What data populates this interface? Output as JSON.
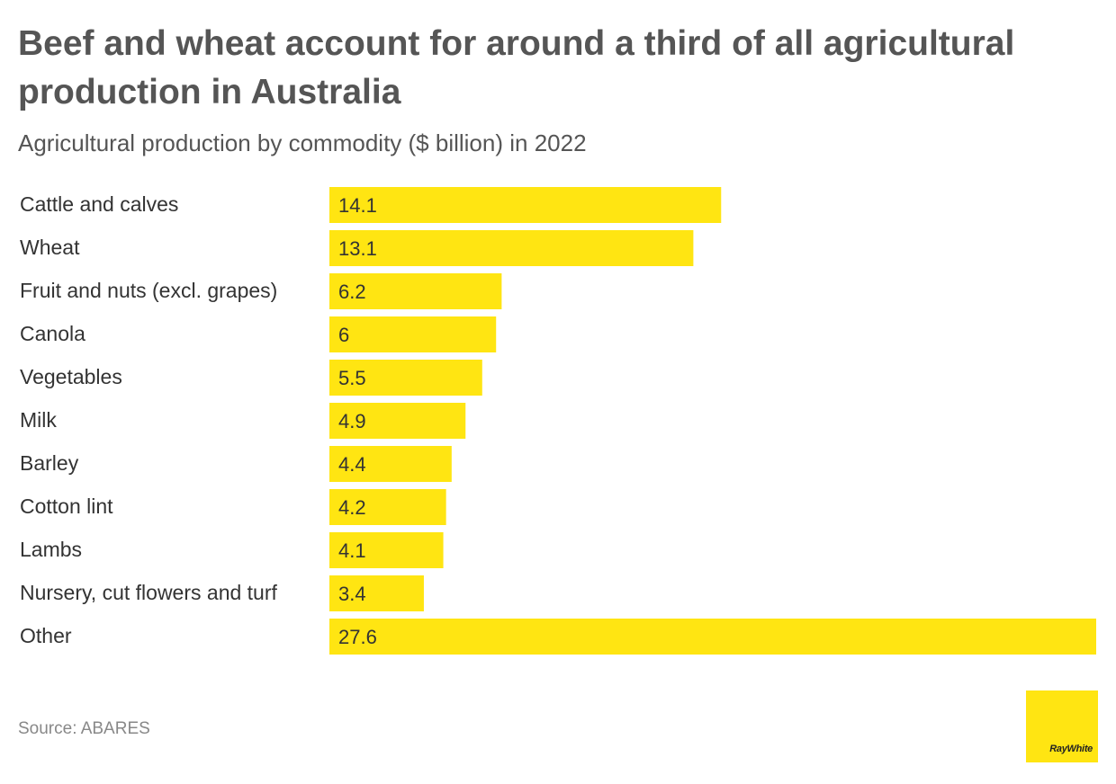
{
  "title": "Beef and wheat account for around a third of all agricultural production in Australia",
  "subtitle": "Agricultural production by commodity ($ billion) in 2022",
  "source": "Source: ABARES",
  "logo": {
    "text": "RayWhite"
  },
  "colors": {
    "bar": "#ffe512",
    "text": "#333333",
    "title": "#555555",
    "source": "#888888"
  },
  "chart_data": {
    "type": "bar",
    "orientation": "horizontal",
    "title": "Beef and wheat account for around a third of all agricultural production in Australia",
    "subtitle": "Agricultural production by commodity ($ billion) in 2022",
    "xlabel": "",
    "ylabel": "",
    "grid": false,
    "legend": "none",
    "categories": [
      "Cattle and calves",
      "Wheat",
      "Fruit and nuts (excl. grapes)",
      "Canola",
      "Vegetables",
      "Milk",
      "Barley",
      "Cotton lint",
      "Lambs",
      "Nursery, cut flowers and turf",
      "Other"
    ],
    "values": [
      14.1,
      13.1,
      6.2,
      6,
      5.5,
      4.9,
      4.4,
      4.2,
      4.1,
      3.4,
      27.6
    ],
    "value_labels": [
      "14.1",
      "13.1",
      "6.2",
      "6",
      "5.5",
      "4.9",
      "4.4",
      "4.2",
      "4.1",
      "3.4",
      "27.6"
    ],
    "xlim": [
      0,
      27.6
    ]
  }
}
